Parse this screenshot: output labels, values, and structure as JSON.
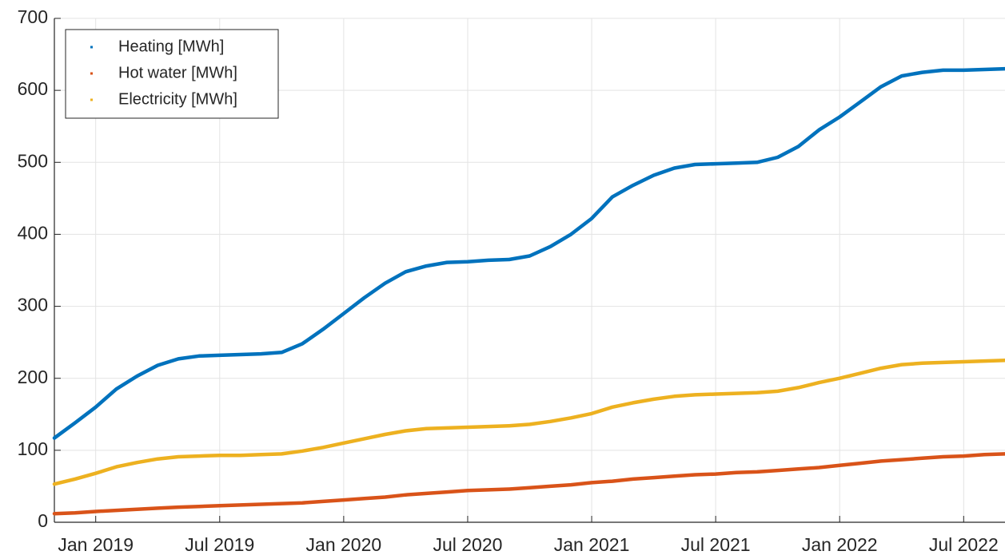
{
  "chart_data": {
    "type": "line",
    "x": [
      "2018-11",
      "2018-12",
      "2019-01",
      "2019-02",
      "2019-03",
      "2019-04",
      "2019-05",
      "2019-06",
      "2019-07",
      "2019-08",
      "2019-09",
      "2019-10",
      "2019-11",
      "2019-12",
      "2020-01",
      "2020-02",
      "2020-03",
      "2020-04",
      "2020-05",
      "2020-06",
      "2020-07",
      "2020-08",
      "2020-09",
      "2020-10",
      "2020-11",
      "2020-12",
      "2021-01",
      "2021-02",
      "2021-03",
      "2021-04",
      "2021-05",
      "2021-06",
      "2021-07",
      "2021-08",
      "2021-09",
      "2021-10",
      "2021-11",
      "2021-12",
      "2022-01",
      "2022-02",
      "2022-03",
      "2022-04",
      "2022-05",
      "2022-06",
      "2022-07",
      "2022-08",
      "2022-09"
    ],
    "series": [
      {
        "name": "Heating [MWh]",
        "color": "#0072BD",
        "values": [
          117,
          138,
          160,
          185,
          203,
          218,
          227,
          231,
          232,
          233,
          234,
          236,
          248,
          268,
          290,
          312,
          332,
          348,
          356,
          361,
          362,
          364,
          365,
          370,
          383,
          400,
          422,
          452,
          468,
          482,
          492,
          497,
          498,
          499,
          500,
          507,
          522,
          545,
          563,
          584,
          605,
          620,
          625,
          628,
          628,
          629,
          630
        ]
      },
      {
        "name": "Hot water [MWh]",
        "color": "#D95319",
        "values": [
          12,
          13,
          15,
          16.5,
          18,
          19.5,
          21,
          22,
          23,
          24,
          25,
          26,
          27,
          29,
          31,
          33,
          35,
          38,
          40,
          42,
          44,
          45,
          46,
          48,
          50,
          52,
          55,
          57,
          60,
          62,
          64,
          66,
          67,
          69,
          70,
          72,
          74,
          76,
          79,
          82,
          85,
          87,
          89,
          91,
          92,
          94,
          95
        ]
      },
      {
        "name": "Electricity [MWh]",
        "color": "#EDB120",
        "values": [
          53,
          60,
          68,
          77,
          83,
          88,
          91,
          92,
          93,
          93,
          94,
          95,
          99,
          104,
          110,
          116,
          122,
          127,
          130,
          131,
          132,
          133,
          134,
          136,
          140,
          145,
          151,
          160,
          166,
          171,
          175,
          177,
          178,
          179,
          180,
          182,
          187,
          194,
          200,
          207,
          214,
          219,
          221,
          222,
          223,
          224,
          225
        ]
      }
    ],
    "xlim": [
      "2018-11",
      "2022-09"
    ],
    "xticks": [
      {
        "value": "2019-01",
        "label": "Jan 2019"
      },
      {
        "value": "2019-07",
        "label": "Jul 2019"
      },
      {
        "value": "2020-01",
        "label": "Jan 2020"
      },
      {
        "value": "2020-07",
        "label": "Jul 2020"
      },
      {
        "value": "2021-01",
        "label": "Jan 2021"
      },
      {
        "value": "2021-07",
        "label": "Jul 2021"
      },
      {
        "value": "2022-01",
        "label": "Jan 2022"
      },
      {
        "value": "2022-07",
        "label": "Jul 2022"
      }
    ],
    "ylim": [
      0,
      700
    ],
    "yticks": [
      0,
      100,
      200,
      300,
      400,
      500,
      600,
      700
    ],
    "grid": true,
    "legend": "top-left"
  }
}
